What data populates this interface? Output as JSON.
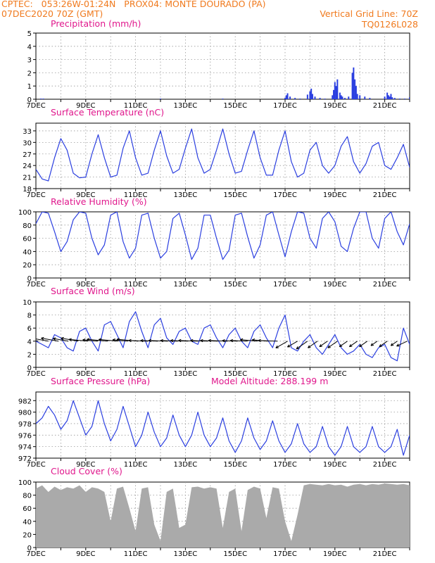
{
  "header": {
    "line1": "CPTEC:   053:26W-01:24N   PROX04: MONTE DOURADO (PA)",
    "line2_left": "07DEC2020 70Z (GMT)",
    "line2_right": "Vertical Grid Line: 70Z",
    "line3_right": "TQ0126L028"
  },
  "colors": {
    "header": "#f07a1e",
    "title": "#e0178c",
    "series": "#2b3fe0",
    "cloud": "#aaaaaa",
    "grid": "#9a9a9a"
  },
  "x_tick_labels": [
    "7DEC",
    "9DEC",
    "11DEC",
    "13DEC",
    "15DEC",
    "17DEC",
    "19DEC",
    "21DEC"
  ],
  "chart_data": [
    {
      "id": "precip",
      "type": "bar",
      "title": "Precipitation (mm/h)",
      "ylim": [
        0,
        5
      ],
      "yticks": [
        0,
        1,
        2,
        3,
        4,
        5
      ],
      "grid": true,
      "x": [
        0.5,
        3.0,
        4.0,
        7.2,
        7.3,
        12.0,
        14.5,
        17.0,
        17.05,
        17.1,
        17.2,
        17.4,
        17.6,
        17.9,
        18.0,
        18.05,
        18.1,
        18.2,
        18.4,
        18.6,
        18.9,
        18.95,
        19.0,
        19.05,
        19.1,
        19.2,
        19.25,
        19.3,
        19.4,
        19.55,
        19.7,
        19.75,
        19.8,
        19.85,
        19.9,
        20.0,
        20.2,
        20.4,
        21.0,
        21.1,
        21.15,
        21.2,
        21.25,
        21.3,
        21.4,
        21.6,
        21.8,
        22.0,
        22.05,
        22.1
      ],
      "values": [
        0.05,
        0.05,
        0.05,
        0.05,
        0.05,
        0.05,
        0.05,
        0.1,
        0.3,
        0.45,
        0.2,
        0.1,
        0.05,
        0.35,
        0.6,
        0.8,
        0.4,
        0.2,
        0.1,
        0.05,
        0.3,
        0.7,
        1.3,
        1.0,
        1.5,
        0.5,
        0.3,
        0.2,
        0.1,
        0.2,
        2.0,
        2.4,
        1.5,
        1.0,
        0.4,
        0.3,
        0.2,
        0.1,
        0.2,
        0.5,
        0.3,
        0.2,
        0.4,
        0.15,
        0.1,
        0.05,
        0.05,
        0.15,
        0.3,
        0.1
      ]
    },
    {
      "id": "temp",
      "type": "line",
      "title": "Surface Temperature (nC)",
      "ylim": [
        18,
        35
      ],
      "yticks": [
        18,
        21,
        24,
        27,
        30,
        33
      ],
      "grid": true,
      "x": [
        7.0,
        7.25,
        7.5,
        7.75,
        8.0,
        8.25,
        8.5,
        8.75,
        9.0,
        9.25,
        9.5,
        9.75,
        10.0,
        10.25,
        10.5,
        10.75,
        11.0,
        11.25,
        11.5,
        11.75,
        12.0,
        12.25,
        12.5,
        12.75,
        13.0,
        13.25,
        13.5,
        13.75,
        14.0,
        14.25,
        14.5,
        14.75,
        15.0,
        15.25,
        15.5,
        15.75,
        16.0,
        16.25,
        16.5,
        16.75,
        17.0,
        17.25,
        17.5,
        17.75,
        18.0,
        18.25,
        18.5,
        18.75,
        19.0,
        19.25,
        19.5,
        19.75,
        20.0,
        20.25,
        20.5,
        20.75,
        21.0,
        21.25,
        21.5,
        21.75,
        22.0
      ],
      "values": [
        23.0,
        20.5,
        20.0,
        26.0,
        31.0,
        28.0,
        22.0,
        20.8,
        21.0,
        27.0,
        32.0,
        26.0,
        21.0,
        21.5,
        28.5,
        33.0,
        26.0,
        21.5,
        22.0,
        28.0,
        33.0,
        26.5,
        22.0,
        23.0,
        28.5,
        33.5,
        26.0,
        22.0,
        23.0,
        28.0,
        33.5,
        27.0,
        22.0,
        22.5,
        28.0,
        33.0,
        26.0,
        21.5,
        21.5,
        28.0,
        33.0,
        25.0,
        21.0,
        22.0,
        28.0,
        30.0,
        24.0,
        22.0,
        24.0,
        29.0,
        31.5,
        25.0,
        22.0,
        24.5,
        29.0,
        30.0,
        24.0,
        23.0,
        26.0,
        29.5,
        23.5
      ]
    },
    {
      "id": "rh",
      "type": "line",
      "title": "Relative Humidity (%)",
      "ylim": [
        0,
        100
      ],
      "yticks": [
        0,
        20,
        40,
        60,
        80,
        100
      ],
      "grid": true,
      "x": [
        7.0,
        7.25,
        7.5,
        7.75,
        8.0,
        8.25,
        8.5,
        8.75,
        9.0,
        9.25,
        9.5,
        9.75,
        10.0,
        10.25,
        10.5,
        10.75,
        11.0,
        11.25,
        11.5,
        11.75,
        12.0,
        12.25,
        12.5,
        12.75,
        13.0,
        13.25,
        13.5,
        13.75,
        14.0,
        14.25,
        14.5,
        14.75,
        15.0,
        15.25,
        15.5,
        15.75,
        16.0,
        16.25,
        16.5,
        16.75,
        17.0,
        17.25,
        17.5,
        17.75,
        18.0,
        18.25,
        18.5,
        18.75,
        19.0,
        19.25,
        19.5,
        19.75,
        20.0,
        20.25,
        20.5,
        20.75,
        21.0,
        21.25,
        21.5,
        21.75,
        22.0
      ],
      "values": [
        82.0,
        100.0,
        98.0,
        70.0,
        40.0,
        55.0,
        88.0,
        100.0,
        98.0,
        60.0,
        35.0,
        50.0,
        95.0,
        100.0,
        55.0,
        30.0,
        45.0,
        95.0,
        98.0,
        60.0,
        30.0,
        40.0,
        90.0,
        98.0,
        65.0,
        28.0,
        45.0,
        95.0,
        95.0,
        60.0,
        28.0,
        42.0,
        95.0,
        98.0,
        62.0,
        30.0,
        50.0,
        95.0,
        100.0,
        65.0,
        32.0,
        70.0,
        100.0,
        98.0,
        60.0,
        45.0,
        90.0,
        100.0,
        85.0,
        48.0,
        40.0,
        75.0,
        100.0,
        100.0,
        60.0,
        45.0,
        90.0,
        100.0,
        70.0,
        50.0,
        82.0
      ]
    },
    {
      "id": "wind",
      "type": "line",
      "title": "Surface Wind (m/s)",
      "ylim": [
        0,
        10
      ],
      "yticks": [
        0,
        2,
        4,
        6,
        8,
        10
      ],
      "grid": true,
      "x": [
        7.0,
        7.25,
        7.5,
        7.75,
        8.0,
        8.25,
        8.5,
        8.75,
        9.0,
        9.25,
        9.5,
        9.75,
        10.0,
        10.25,
        10.5,
        10.75,
        11.0,
        11.25,
        11.5,
        11.75,
        12.0,
        12.25,
        12.5,
        12.75,
        13.0,
        13.25,
        13.5,
        13.75,
        14.0,
        14.25,
        14.5,
        14.75,
        15.0,
        15.25,
        15.5,
        15.75,
        16.0,
        16.25,
        16.5,
        16.75,
        17.0,
        17.25,
        17.5,
        17.75,
        18.0,
        18.25,
        18.5,
        18.75,
        19.0,
        19.25,
        19.5,
        19.75,
        20.0,
        20.25,
        20.5,
        20.75,
        21.0,
        21.25,
        21.5,
        21.75,
        22.0
      ],
      "values": [
        4.0,
        3.5,
        3.0,
        5.0,
        4.5,
        3.0,
        2.5,
        5.5,
        6.0,
        4.0,
        2.5,
        6.5,
        7.0,
        5.0,
        3.0,
        7.0,
        8.5,
        5.5,
        3.0,
        6.5,
        7.5,
        4.5,
        3.5,
        5.5,
        6.0,
        4.0,
        3.5,
        6.0,
        6.5,
        4.5,
        3.0,
        5.0,
        6.0,
        4.0,
        3.0,
        5.5,
        6.5,
        4.5,
        3.0,
        6.0,
        8.0,
        3.0,
        2.5,
        4.0,
        5.0,
        3.0,
        2.0,
        3.5,
        5.0,
        3.0,
        2.0,
        2.5,
        3.5,
        2.0,
        1.5,
        3.0,
        3.5,
        1.5,
        1.0,
        6.0,
        3.5
      ],
      "vector_x": [
        7.1,
        7.5,
        7.9,
        8.3,
        8.7,
        9.1,
        9.5,
        9.9,
        10.3,
        10.7,
        11.1,
        11.5,
        11.9,
        12.3,
        12.7,
        13.1,
        13.5,
        13.9,
        14.3,
        14.7,
        15.1,
        15.5,
        15.9,
        16.3,
        16.7,
        17.1,
        17.5,
        17.9,
        18.3,
        18.7,
        19.1,
        19.5,
        19.9,
        20.3,
        20.7,
        21.1,
        21.5,
        21.9
      ],
      "vector_speed": [
        4.0,
        4.2,
        4.5,
        4.0,
        4.5,
        5.0,
        4.0,
        5.5,
        5.0,
        4.0,
        5.5,
        5.0,
        4.5,
        5.0,
        4.5,
        4.5,
        5.0,
        4.5,
        4.5,
        5.0,
        4.0,
        4.5,
        4.5,
        4.0,
        5.0,
        3.5,
        3.0,
        3.5,
        3.0,
        2.5,
        3.0,
        2.5,
        2.5,
        2.5,
        2.0,
        2.5,
        2.0,
        3.0
      ],
      "vector_dir_deg": [
        170,
        170,
        170,
        170,
        170,
        175,
        175,
        175,
        175,
        175,
        175,
        178,
        178,
        178,
        178,
        178,
        178,
        178,
        178,
        178,
        178,
        178,
        175,
        175,
        178,
        210,
        210,
        215,
        215,
        215,
        215,
        215,
        215,
        215,
        215,
        215,
        215,
        205
      ]
    },
    {
      "id": "pres",
      "type": "line",
      "title": "Surface Pressure (hPa)",
      "annotation": "Model Altitude: 288.199 m",
      "ylim": [
        972,
        983.5
      ],
      "yticks": [
        972,
        974,
        976,
        978,
        980,
        982
      ],
      "grid": true,
      "x": [
        7.0,
        7.25,
        7.5,
        7.75,
        8.0,
        8.25,
        8.5,
        8.75,
        9.0,
        9.25,
        9.5,
        9.75,
        10.0,
        10.25,
        10.5,
        10.75,
        11.0,
        11.25,
        11.5,
        11.75,
        12.0,
        12.25,
        12.5,
        12.75,
        13.0,
        13.25,
        13.5,
        13.75,
        14.0,
        14.25,
        14.5,
        14.75,
        15.0,
        15.25,
        15.5,
        15.75,
        16.0,
        16.25,
        16.5,
        16.75,
        17.0,
        17.25,
        17.5,
        17.75,
        18.0,
        18.25,
        18.5,
        18.75,
        19.0,
        19.25,
        19.5,
        19.75,
        20.0,
        20.25,
        20.5,
        20.75,
        21.0,
        21.25,
        21.5,
        21.75,
        22.0
      ],
      "values": [
        978.0,
        979.0,
        981.0,
        979.5,
        977.0,
        978.5,
        982.0,
        979.0,
        976.0,
        977.5,
        982.0,
        978.0,
        975.0,
        977.0,
        981.0,
        977.5,
        974.0,
        976.0,
        980.0,
        976.5,
        974.0,
        975.5,
        979.5,
        976.0,
        974.0,
        976.0,
        980.0,
        976.0,
        974.0,
        975.5,
        979.0,
        975.0,
        973.0,
        975.0,
        979.0,
        975.5,
        973.5,
        975.0,
        978.5,
        975.0,
        973.0,
        974.5,
        978.0,
        974.5,
        973.0,
        974.0,
        977.5,
        974.0,
        972.5,
        974.0,
        977.5,
        974.0,
        973.0,
        974.0,
        977.5,
        974.0,
        973.0,
        974.0,
        977.0,
        972.5,
        976.0
      ]
    },
    {
      "id": "cloud",
      "type": "area",
      "title": "Cloud Cover (%)",
      "ylim": [
        0,
        100
      ],
      "yticks": [
        0,
        20,
        40,
        60,
        80,
        100
      ],
      "grid": true,
      "x": [
        7.0,
        7.25,
        7.5,
        7.75,
        8.0,
        8.25,
        8.5,
        8.75,
        9.0,
        9.25,
        9.5,
        9.75,
        10.0,
        10.25,
        10.5,
        10.75,
        11.0,
        11.25,
        11.5,
        11.75,
        12.0,
        12.25,
        12.5,
        12.75,
        13.0,
        13.25,
        13.5,
        13.75,
        14.0,
        14.25,
        14.5,
        14.75,
        15.0,
        15.25,
        15.5,
        15.75,
        16.0,
        16.25,
        16.5,
        16.75,
        17.0,
        17.25,
        17.5,
        17.75,
        18.0,
        18.25,
        18.5,
        18.75,
        19.0,
        19.25,
        19.5,
        19.75,
        20.0,
        20.25,
        20.5,
        20.75,
        21.0,
        21.25,
        21.5,
        21.75,
        22.0
      ],
      "values": [
        90.0,
        95.0,
        85.0,
        93.0,
        88.0,
        92.0,
        90.0,
        95.0,
        85.0,
        92.0,
        90.0,
        85.0,
        40.0,
        90.0,
        93.0,
        60.0,
        25.0,
        90.0,
        92.0,
        35.0,
        10.0,
        85.0,
        90.0,
        30.0,
        35.0,
        92.0,
        93.0,
        90.0,
        92.0,
        90.0,
        30.0,
        85.0,
        90.0,
        25.0,
        88.0,
        93.0,
        90.0,
        45.0,
        92.0,
        90.0,
        40.0,
        10.0,
        50.0,
        95.0,
        97.0,
        96.0,
        95.0,
        97.0,
        95.0,
        96.0,
        93.0,
        96.0,
        97.0,
        95.0,
        97.0,
        96.0,
        98.0,
        97.0,
        96.0,
        97.0,
        95.0
      ]
    }
  ]
}
